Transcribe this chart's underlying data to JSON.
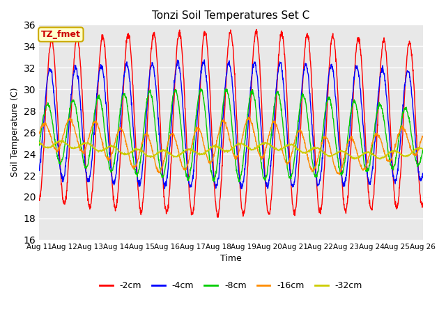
{
  "title": "Tonzi Soil Temperatures Set C",
  "xlabel": "Time",
  "ylabel": "Soil Temperature (C)",
  "ylim": [
    16,
    36
  ],
  "yticks": [
    16,
    18,
    20,
    22,
    24,
    26,
    28,
    30,
    32,
    34,
    36
  ],
  "xtick_labels": [
    "Aug 11",
    "Aug 12",
    "Aug 13",
    "Aug 14",
    "Aug 15",
    "Aug 16",
    "Aug 17",
    "Aug 18",
    "Aug 19",
    "Aug 20",
    "Aug 21",
    "Aug 22",
    "Aug 23",
    "Aug 24",
    "Aug 25",
    "Aug 26"
  ],
  "legend_labels": [
    "-2cm",
    "-4cm",
    "-8cm",
    "-16cm",
    "-32cm"
  ],
  "legend_colors": [
    "#ff0000",
    "#0000ff",
    "#00cc00",
    "#ff8c00",
    "#cccc00"
  ],
  "annotation_text": "TZ_fmet",
  "annotation_bg": "#ffffcc",
  "annotation_border": "#ccaa00",
  "bg_color": "#e8e8e8",
  "n_days": 15,
  "samples_per_day": 96
}
